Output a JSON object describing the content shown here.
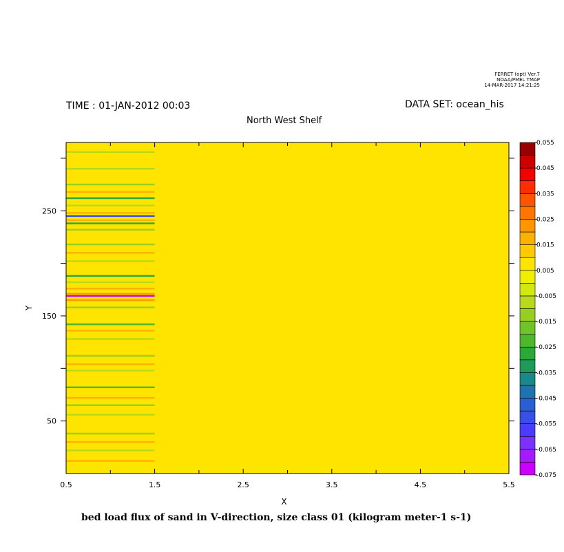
{
  "stamp": {
    "line1": "FERRET (opt) Ver.7",
    "line2": "NOAA/PMEL TMAP",
    "line3": "14-MAR-2017 14:21:25"
  },
  "header": {
    "time": "TIME : 01-JAN-2012 00:03",
    "dataset": "DATA SET: ocean_his"
  },
  "chart_data": {
    "type": "heatmap",
    "title": "North West Shelf",
    "xlabel": "X",
    "ylabel": "Y",
    "xlim": [
      0.5,
      5.5
    ],
    "ylim": [
      0,
      315
    ],
    "x_ticks": [
      0.5,
      1.5,
      2.5,
      3.5,
      4.5,
      5.5
    ],
    "x_tick_labels": [
      "0.5",
      "1.5",
      "2.5",
      "3.5",
      "4.5",
      "5.5"
    ],
    "y_ticks": [
      50,
      150,
      250
    ],
    "y_tick_labels": [
      "50",
      "150",
      "250"
    ],
    "y_minor_ticks": [
      100,
      200,
      300
    ],
    "background_value": 0.005,
    "striped_region": {
      "x_from": 0.5,
      "x_to": 1.5
    },
    "stripes": [
      {
        "y": 12,
        "value": 0.015
      },
      {
        "y": 22,
        "value": -0.005
      },
      {
        "y": 30,
        "value": 0.015
      },
      {
        "y": 38,
        "value": -0.015
      },
      {
        "y": 48,
        "value": 0.01
      },
      {
        "y": 56,
        "value": -0.01
      },
      {
        "y": 65,
        "value": -0.015
      },
      {
        "y": 72,
        "value": 0.015
      },
      {
        "y": 82,
        "value": -0.02
      },
      {
        "y": 90,
        "value": 0.01
      },
      {
        "y": 98,
        "value": -0.01
      },
      {
        "y": 104,
        "value": 0.015
      },
      {
        "y": 112,
        "value": -0.015
      },
      {
        "y": 120,
        "value": 0.01
      },
      {
        "y": 128,
        "value": -0.01
      },
      {
        "y": 136,
        "value": 0.015
      },
      {
        "y": 142,
        "value": -0.02
      },
      {
        "y": 150,
        "value": 0.01
      },
      {
        "y": 158,
        "value": -0.015
      },
      {
        "y": 165,
        "value": 0.02
      },
      {
        "y": 169,
        "value": -0.075
      },
      {
        "y": 171,
        "value": 0.02
      },
      {
        "y": 176,
        "value": 0.015
      },
      {
        "y": 182,
        "value": -0.01
      },
      {
        "y": 188,
        "value": -0.025
      },
      {
        "y": 195,
        "value": 0.01
      },
      {
        "y": 202,
        "value": -0.01
      },
      {
        "y": 210,
        "value": 0.015
      },
      {
        "y": 218,
        "value": -0.015
      },
      {
        "y": 226,
        "value": 0.01
      },
      {
        "y": 232,
        "value": -0.015
      },
      {
        "y": 238,
        "value": -0.03
      },
      {
        "y": 241,
        "value": 0.015
      },
      {
        "y": 245,
        "value": -0.05
      },
      {
        "y": 248,
        "value": 0.015
      },
      {
        "y": 255,
        "value": -0.01
      },
      {
        "y": 262,
        "value": -0.03
      },
      {
        "y": 268,
        "value": 0.015
      },
      {
        "y": 275,
        "value": -0.015
      },
      {
        "y": 282,
        "value": 0.01
      },
      {
        "y": 290,
        "value": -0.01
      },
      {
        "y": 298,
        "value": 0.01
      },
      {
        "y": 306,
        "value": -0.01
      }
    ],
    "colorbar": {
      "min": -0.075,
      "max": 0.055,
      "step": 0.005,
      "labels": [
        "0.055",
        "0.045",
        "0.035",
        "0.025",
        "0.015",
        "0.005",
        "-0.005",
        "-0.015",
        "-0.025",
        "-0.035",
        "-0.045",
        "-0.055",
        "-0.065",
        "-0.075"
      ],
      "colors": [
        "#cc00ff",
        "#a31cff",
        "#7a33ff",
        "#4a3cff",
        "#3850e8",
        "#2b5fd0",
        "#1e74b0",
        "#188a8a",
        "#1e9a5a",
        "#2aa838",
        "#4db82a",
        "#6fc427",
        "#96cf1f",
        "#b8da1a",
        "#d2e80e",
        "#eef000",
        "#ffe400",
        "#ffcb00",
        "#ffb100",
        "#ff9600",
        "#ff7700",
        "#ff5500",
        "#ff2e00",
        "#f50000",
        "#cc0000",
        "#990000"
      ]
    }
  },
  "footer": {
    "caption": "bed load flux of sand in V-direction, size class 01 (kilogram meter-1 s-1)"
  }
}
